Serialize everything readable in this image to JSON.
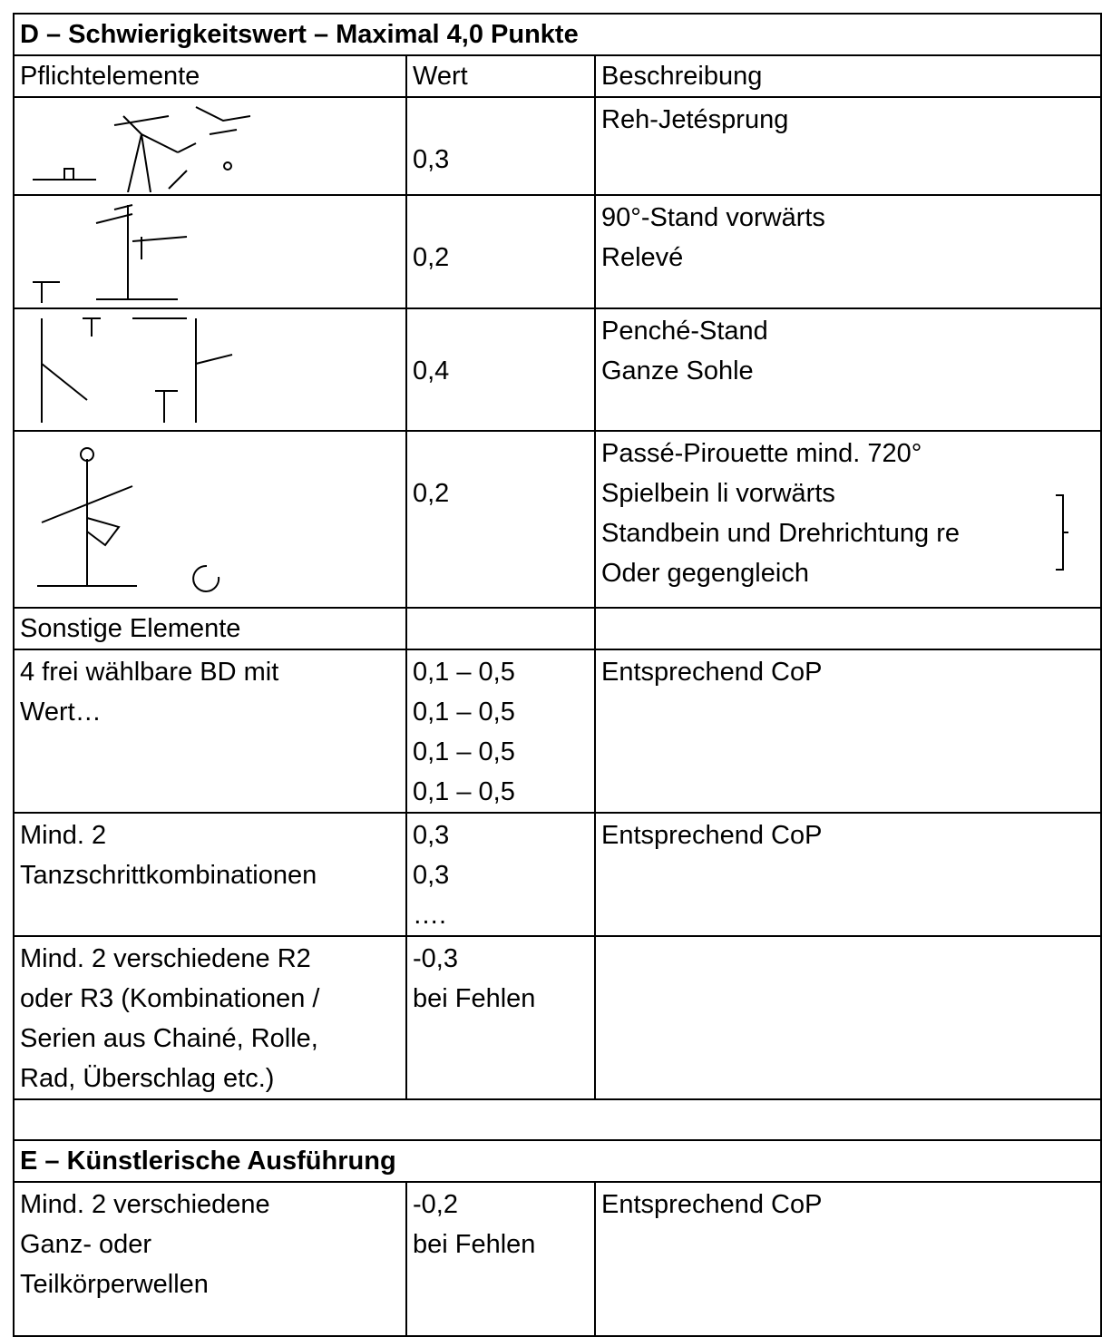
{
  "section_d": {
    "title": "D – Schwierigkeitswert – Maximal 4,0 Punkte",
    "header": [
      "Pflichtelemente",
      "Wert",
      "Beschreibung"
    ],
    "required": [
      {
        "wert": "0,3",
        "beschreibung": [
          "Reh-Jetésprung"
        ]
      },
      {
        "wert": "0,2",
        "beschreibung": [
          "90°-Stand vorwärts",
          "Relevé"
        ]
      },
      {
        "wert": "0,4",
        "beschreibung": [
          "Penché-Stand",
          "Ganze Sohle"
        ]
      },
      {
        "wert": "0,2",
        "beschreibung": [
          "Passé-Pirouette mind. 720°",
          "Spielbein li vorwärts",
          "Standbein und Drehrichtung re",
          "Oder gegengleich"
        ]
      }
    ],
    "other_title": "Sonstige Elemente",
    "other": [
      {
        "element": [
          "4 frei wählbare BD mit",
          "Wert…"
        ],
        "wert": [
          "0,1 – 0,5",
          "0,1 – 0,5",
          "0,1 – 0,5",
          "0,1 – 0,5"
        ],
        "beschreibung": [
          "Entsprechend CoP"
        ]
      },
      {
        "element": [
          "Mind. 2",
          "Tanzschrittkombinationen"
        ],
        "wert": [
          "0,3",
          "0,3",
          "…."
        ],
        "beschreibung": [
          "Entsprechend CoP"
        ]
      },
      {
        "element": [
          "Mind. 2 verschiedene R2",
          "oder R3 (Kombinationen /",
          "Serien aus Chainé, Rolle,",
          "Rad, Überschlag etc.)"
        ],
        "wert": [
          "-0,3",
          "bei Fehlen"
        ]
      }
    ]
  },
  "section_e": {
    "title": "E – Künstlerische Ausführung",
    "rows": [
      {
        "element": [
          "Mind. 2 verschiedene",
          "Ganz- oder",
          "Teilkörperwellen"
        ],
        "wert": [
          "-0,2",
          "bei Fehlen"
        ],
        "beschreibung": [
          "Entsprechend CoP"
        ]
      }
    ]
  }
}
